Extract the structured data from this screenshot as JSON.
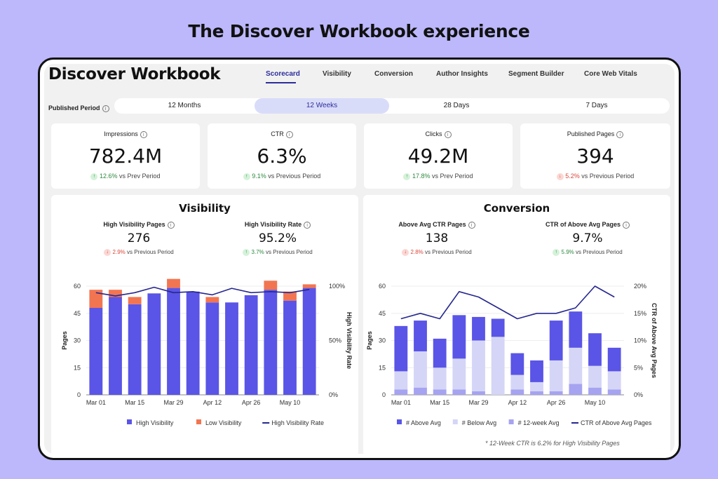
{
  "banner": "The Discover Workbook experience",
  "app": {
    "title": "Discover Workbook",
    "tabs": [
      "Scorecard",
      "Visibility",
      "Conversion",
      "Author Insights",
      "Segment Builder",
      "Core Web Vitals"
    ],
    "active_tab": "Scorecard"
  },
  "period": {
    "label": "Published Period",
    "options": [
      "12 Months",
      "12 Weeks",
      "28 Days",
      "7 Days"
    ],
    "selected": "12 Weeks"
  },
  "kpis": [
    {
      "title": "Impressions",
      "value": "782.4M",
      "dir": "up",
      "pct": "12.6%",
      "cmp": "vs Prev Period"
    },
    {
      "title": "CTR",
      "value": "6.3%",
      "dir": "up",
      "pct": "9.1%",
      "cmp": "vs Previous Period"
    },
    {
      "title": "Clicks",
      "value": "49.2M",
      "dir": "up",
      "pct": "17.8%",
      "cmp": "vs Prev Period"
    },
    {
      "title": "Published Pages",
      "value": "394",
      "dir": "down",
      "pct": "5.2%",
      "cmp": "vs Previous Period"
    }
  ],
  "visibility": {
    "title": "Visibility",
    "stats": [
      {
        "title": "High Visibility Pages",
        "value": "276",
        "dir": "down",
        "pct": "2.9%",
        "cmp": "vs Previous Period"
      },
      {
        "title": "High Visibility Rate",
        "value": "95.2%",
        "dir": "up",
        "pct": "3.7%",
        "cmp": "vs Previous Period"
      }
    ]
  },
  "conversion": {
    "title": "Conversion",
    "stats": [
      {
        "title": "Above Avg CTR Pages",
        "value": "138",
        "dir": "down",
        "pct": "2.8%",
        "cmp": "vs Previous Period"
      },
      {
        "title": "CTR of Above Avg Pages",
        "value": "9.7%",
        "dir": "up",
        "pct": "5.9%",
        "cmp": "vs Previous Period"
      }
    ],
    "footnote": "* 12-Week CTR is 6.2% for High Visibility Pages"
  },
  "colors": {
    "primary": "#5a55e6",
    "light": "#d5d5f7",
    "mid": "#a6a3f1",
    "orange": "#f27551",
    "line": "#26278f"
  },
  "chart_data": [
    {
      "type": "bar",
      "title": "Visibility",
      "x": [
        "Mar 01",
        "Mar 08",
        "Mar 15",
        "Mar 22",
        "Mar 29",
        "Apr 05",
        "Apr 12",
        "Apr 19",
        "Apr 26",
        "May 03",
        "May 10",
        "May 17"
      ],
      "x_tick_labels": [
        "Mar 01",
        "Mar 15",
        "Mar 29",
        "Apr 12",
        "Apr 26",
        "May 10"
      ],
      "series": [
        {
          "name": "High Visibility",
          "axis": "left",
          "values": [
            48,
            54,
            50,
            56,
            59,
            57,
            51,
            51,
            55,
            58,
            52,
            59
          ]
        },
        {
          "name": "Low Visibility",
          "axis": "left",
          "values": [
            10,
            4,
            4,
            0,
            5,
            0,
            3,
            0,
            0,
            5,
            5,
            2
          ]
        },
        {
          "name": "High Visibility Rate",
          "axis": "right",
          "kind": "line",
          "values": [
            94,
            91,
            94,
            99,
            94,
            95,
            92,
            98,
            94,
            95,
            94,
            97
          ]
        }
      ],
      "ylabel": "Pages",
      "y2label": "High Visibility Rate",
      "yticks": [
        0,
        15,
        30,
        45,
        60
      ],
      "ylim": [
        0,
        60
      ],
      "y2ticks": [
        "0%",
        "50%",
        "100%"
      ],
      "y2lim": [
        0,
        100
      ],
      "legend": "bottom"
    },
    {
      "type": "bar",
      "title": "Conversion",
      "x": [
        "Mar 01",
        "Mar 08",
        "Mar 15",
        "Mar 22",
        "Mar 29",
        "Apr 05",
        "Apr 12",
        "Apr 19",
        "Apr 26",
        "May 03",
        "May 10",
        "May 17"
      ],
      "x_tick_labels": [
        "Mar 01",
        "Mar 15",
        "Mar 29",
        "Apr 12",
        "Apr 26",
        "May 10"
      ],
      "series": [
        {
          "name": "# Above Avg",
          "axis": "left",
          "values": [
            25,
            17,
            16,
            24,
            13,
            10,
            12,
            12,
            22,
            20,
            18,
            13
          ]
        },
        {
          "name": "# Below Avg",
          "axis": "left",
          "values": [
            10,
            20,
            12,
            17,
            28,
            32,
            8,
            5,
            17,
            20,
            12,
            10
          ]
        },
        {
          "name": "# 12-week Avg",
          "axis": "left",
          "values": [
            3,
            4,
            3,
            3,
            2,
            0,
            3,
            2,
            2,
            6,
            4,
            3
          ]
        },
        {
          "name": "CTR of Above Avg Pages",
          "axis": "right",
          "kind": "line",
          "values": [
            14,
            15,
            14,
            19,
            18,
            16,
            14,
            15,
            15,
            16,
            20,
            18
          ]
        }
      ],
      "ylabel": "Pages",
      "y2label": "CTR of Above Avg Pages",
      "yticks": [
        0,
        15,
        30,
        45,
        60
      ],
      "ylim": [
        0,
        60
      ],
      "y2ticks": [
        "0%",
        "5%",
        "10%",
        "15%",
        "20%"
      ],
      "y2lim": [
        0,
        20
      ],
      "legend": "bottom"
    }
  ]
}
